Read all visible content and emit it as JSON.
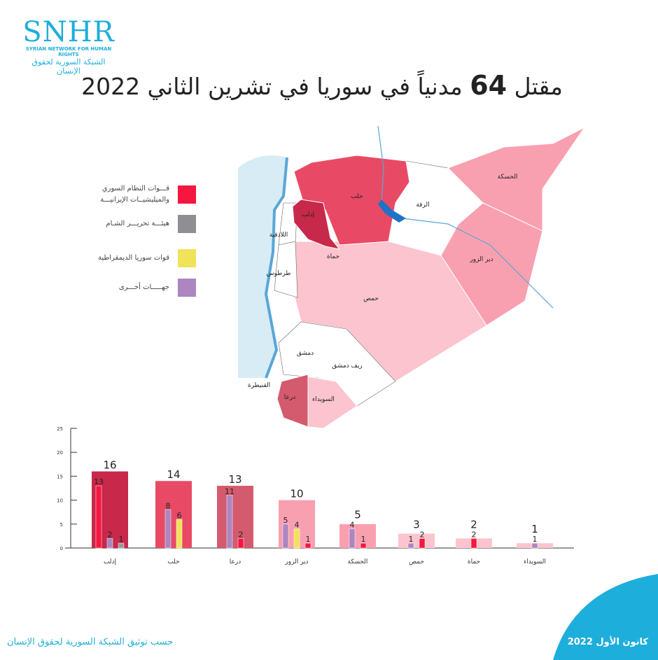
{
  "logo": {
    "brand": "SNHR",
    "english": "SYRIAN NETWORK FOR HUMAN RIGHTS",
    "arabic": "الشبكة السورية لحقوق الإنسان"
  },
  "title": {
    "prefix": "مقتل",
    "number": "64",
    "rest": "مدنياً في سوريا في تشرين الثاني 2022"
  },
  "legend": [
    {
      "label": "قـــوات النظام السوري\nوالميليشيــات الإيرانيـــة",
      "color": "#f5173f"
    },
    {
      "label": "هيئـــة تحريـــر الشـام",
      "color": "#8f8f93"
    },
    {
      "label": "قوات سوريا الديمقراطية",
      "color": "#f0e35a"
    },
    {
      "label": "جهـــــات أخـــرى",
      "color": "#ab86c0"
    }
  ],
  "map_labels": {
    "aleppo": "حلب",
    "idlib": "إدلب",
    "raqqa": "الرقة",
    "hasakah": "الحسكة",
    "latakia": "اللاذقية",
    "hama": "حماة",
    "deir": "دير الزور",
    "tartus": "طرطوس",
    "homs": "حمص",
    "damascus": "دمشق",
    "rif": "ريف دمشق",
    "quneitra": "القنيطرة",
    "daraa": "درعا",
    "sweida": "السويداء"
  },
  "chart_data": {
    "type": "bar",
    "title": "",
    "xlabel": "",
    "ylabel": "",
    "ylim": [
      0,
      25
    ],
    "yticks": [
      "0",
      "5",
      "10",
      "15",
      "20",
      "25"
    ],
    "categories": [
      "إدلب",
      "حلب",
      "درعا",
      "دير الزور",
      "الحسكة",
      "حمص",
      "حماة",
      "السويداء"
    ],
    "totals": [
      16,
      14,
      13,
      10,
      5,
      3,
      2,
      1
    ],
    "total_colors": [
      "#c8284a",
      "#e84a66",
      "#d45a6e",
      "#f9a0b0",
      "#f9a0b0",
      "#fcc4ce",
      "#fcc4ce",
      "#fcc4ce"
    ],
    "series": [
      {
        "name": "قوات النظام السوري والميليشيات الإيرانية",
        "color": "#f5173f",
        "values": [
          13,
          0,
          2,
          1,
          1,
          2,
          2,
          0
        ]
      },
      {
        "name": "جهات أخرى",
        "color": "#ab86c0",
        "values": [
          2,
          8,
          11,
          5,
          4,
          1,
          0,
          1
        ]
      },
      {
        "name": "قوات سوريا الديمقراطية",
        "color": "#f0e35a",
        "values": [
          0,
          6,
          0,
          4,
          0,
          0,
          0,
          0
        ]
      },
      {
        "name": "هيئة تحرير الشام",
        "color": "#999999",
        "values": [
          1,
          0,
          0,
          0,
          0,
          0,
          0,
          0
        ]
      }
    ],
    "bar_order": [
      [
        "0",
        "1",
        "3"
      ],
      [
        "1",
        "2"
      ],
      [
        "1",
        "0"
      ],
      [
        "1",
        "2",
        "0"
      ],
      [
        "1",
        "0"
      ],
      [
        "1",
        "0"
      ],
      [
        "0"
      ],
      [
        "1"
      ]
    ]
  },
  "footer": {
    "source": "حسب توثيق الشبكة السورية لحقوق الإنسان",
    "date": "كانون الأول 2022"
  },
  "colors": {
    "brand": "#1eaedb"
  }
}
